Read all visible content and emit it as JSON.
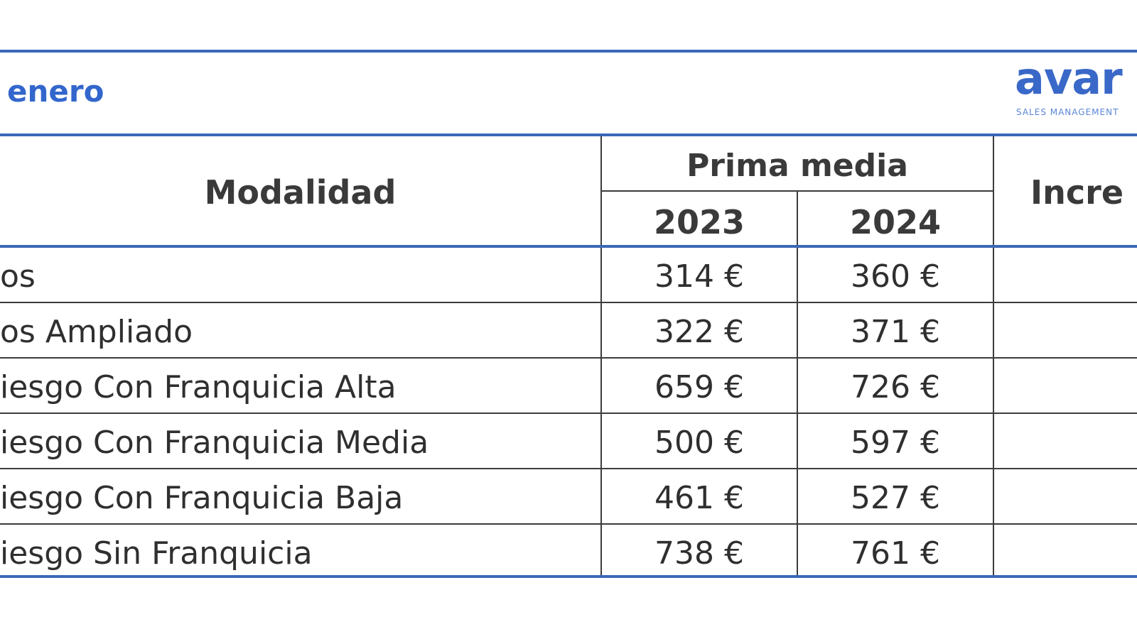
{
  "title": "enero",
  "logo": {
    "main": "avar",
    "sub": "SALES MANAGEMENT"
  },
  "table": {
    "header": {
      "modalidad": "Modalidad",
      "prima_media": "Prima media",
      "years": [
        "2023",
        "2024"
      ],
      "incremento": "Incre"
    },
    "rows": [
      {
        "modalidad": "os",
        "y2023": "314 €",
        "y2024": "360 €"
      },
      {
        "modalidad": "os Ampliado",
        "y2023": "322 €",
        "y2024": "371 €"
      },
      {
        "modalidad": "iesgo Con Franquicia Alta",
        "y2023": "659 €",
        "y2024": "726 €"
      },
      {
        "modalidad": "iesgo Con Franquicia Media",
        "y2023": "500 €",
        "y2024": "597 €"
      },
      {
        "modalidad": "iesgo Con Franquicia Baja",
        "y2023": "461 €",
        "y2024": "527 €"
      },
      {
        "modalidad": "iesgo Sin Franquicia",
        "y2023": "738 €",
        "y2024": "761 €"
      }
    ]
  },
  "colors": {
    "accent": "#3366cc",
    "border": "#3a68b8",
    "grid": "#3c3c3c"
  }
}
